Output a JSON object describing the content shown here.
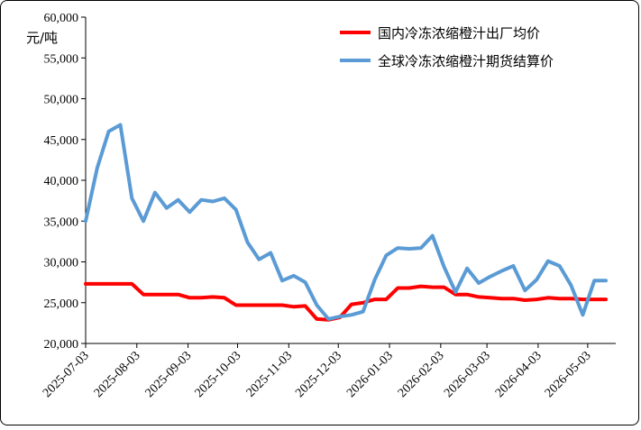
{
  "chart_data": {
    "type": "line",
    "title": "",
    "ylabel": "元/吨",
    "xlabel": "",
    "ylim": [
      20000,
      60000
    ],
    "ytick_step": 5000,
    "y_tick_labels": [
      "20,000",
      "25,000",
      "30,000",
      "35,000",
      "40,000",
      "45,000",
      "50,000",
      "55,000",
      "60,000"
    ],
    "x_tick_labels": [
      "2025-07-03",
      "2025-08-03",
      "2025-09-03",
      "2025-10-03",
      "2025-11-03",
      "2025-12-03",
      "2026-01-03",
      "2026-02-03",
      "2026-03-03",
      "2026-04-03",
      "2026-05-03"
    ],
    "x_tick_dates": [
      "2025-07-03",
      "2025-08-03",
      "2025-09-03",
      "2025-10-03",
      "2025-11-03",
      "2025-12-03",
      "2026-01-03",
      "2026-02-03",
      "2026-03-03",
      "2026-04-03",
      "2026-05-03"
    ],
    "x_start": "2025-07-03",
    "x_end": "2026-05-20",
    "grid": false,
    "legend_position": "top-right",
    "series": [
      {
        "name": "国内冷冻浓缩橙汁出厂均价",
        "color": "#ff0000",
        "x": [
          "2025-07-03",
          "2025-07-10",
          "2025-07-17",
          "2025-07-24",
          "2025-07-31",
          "2025-08-07",
          "2025-08-14",
          "2025-08-21",
          "2025-08-28",
          "2025-09-04",
          "2025-09-11",
          "2025-09-18",
          "2025-09-25",
          "2025-10-02",
          "2025-10-09",
          "2025-10-16",
          "2025-10-23",
          "2025-10-30",
          "2025-11-06",
          "2025-11-13",
          "2025-11-20",
          "2025-11-27",
          "2025-12-04",
          "2025-12-11",
          "2025-12-18",
          "2025-12-25",
          "2026-01-01",
          "2026-01-08",
          "2026-01-15",
          "2026-01-22",
          "2026-01-29",
          "2026-02-05",
          "2026-02-12",
          "2026-02-19",
          "2026-02-26",
          "2026-03-05",
          "2026-03-12",
          "2026-03-19",
          "2026-03-26",
          "2026-04-02",
          "2026-04-09",
          "2026-04-16",
          "2026-04-23",
          "2026-04-30",
          "2026-05-07",
          "2026-05-14"
        ],
        "values": [
          27300,
          27300,
          27300,
          27300,
          27300,
          26000,
          26000,
          26000,
          26000,
          25600,
          25600,
          25700,
          25600,
          24700,
          24700,
          24700,
          24700,
          24700,
          24500,
          24600,
          23000,
          22900,
          23200,
          24800,
          25000,
          25400,
          25400,
          26800,
          26800,
          27000,
          26900,
          26900,
          26000,
          26000,
          25700,
          25600,
          25500,
          25500,
          25300,
          25400,
          25600,
          25500,
          25500,
          25400,
          25400,
          25400
        ]
      },
      {
        "name": "全球冷冻浓缩橙汁期货结算价",
        "color": "#5b9bd5",
        "x": [
          "2025-07-03",
          "2025-07-10",
          "2025-07-17",
          "2025-07-24",
          "2025-07-31",
          "2025-08-07",
          "2025-08-14",
          "2025-08-21",
          "2025-08-28",
          "2025-09-04",
          "2025-09-11",
          "2025-09-18",
          "2025-09-25",
          "2025-10-02",
          "2025-10-09",
          "2025-10-16",
          "2025-10-23",
          "2025-10-30",
          "2025-11-06",
          "2025-11-13",
          "2025-11-20",
          "2025-11-27",
          "2025-12-04",
          "2025-12-11",
          "2025-12-18",
          "2025-12-25",
          "2026-01-01",
          "2026-01-08",
          "2026-01-15",
          "2026-01-22",
          "2026-01-29",
          "2026-02-05",
          "2026-02-12",
          "2026-02-19",
          "2026-02-26",
          "2026-03-05",
          "2026-03-12",
          "2026-03-19",
          "2026-03-26",
          "2026-04-02",
          "2026-04-09",
          "2026-04-16",
          "2026-04-23",
          "2026-04-30",
          "2026-05-07",
          "2026-05-14"
        ],
        "values": [
          35000,
          41500,
          46000,
          46800,
          37800,
          35000,
          38500,
          36600,
          37600,
          36100,
          37600,
          37400,
          37800,
          36400,
          32400,
          30300,
          31100,
          27700,
          28300,
          27500,
          24700,
          23000,
          23300,
          23500,
          23900,
          27800,
          30800,
          31700,
          31600,
          31700,
          33200,
          29400,
          26300,
          29200,
          27400,
          28200,
          28900,
          29500,
          26500,
          27800,
          30100,
          29500,
          27100,
          23500,
          27700,
          27700
        ]
      }
    ]
  }
}
